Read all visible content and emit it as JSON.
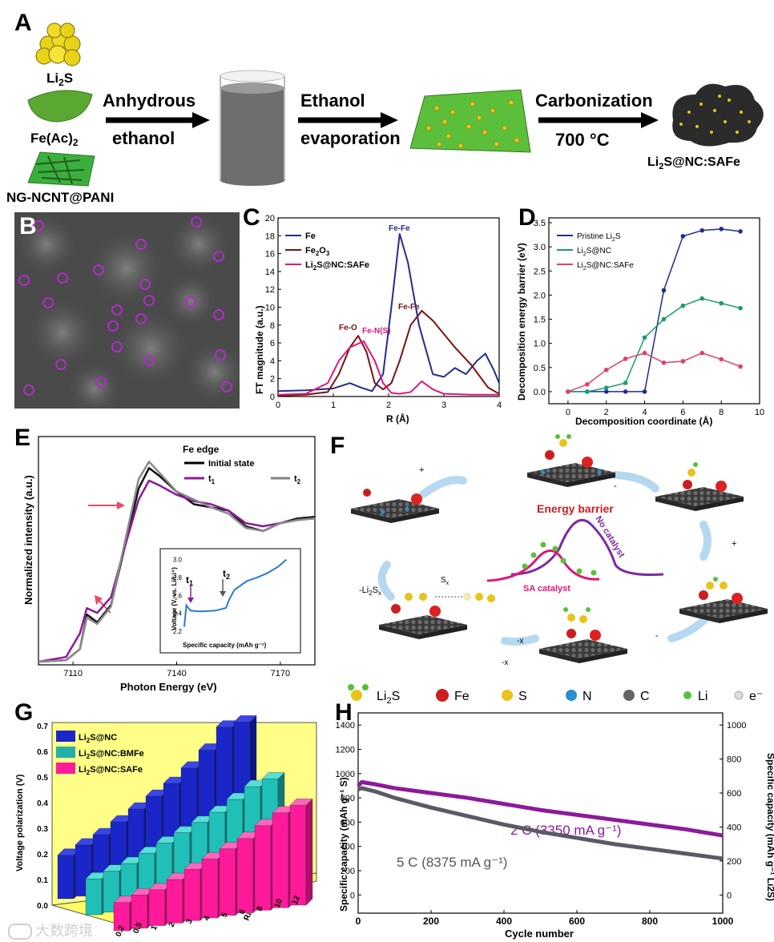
{
  "panels": {
    "a": {
      "letter": "A",
      "reagents": [
        "Li2S",
        "Fe(Ac)2",
        "NG-NCNT@PANI"
      ],
      "step1": [
        "Anhydrous",
        "ethanol"
      ],
      "step2": [
        "Ethanol",
        "evaporation"
      ],
      "step3": [
        "Carbonization",
        "700 °C"
      ],
      "product": "Li2S@NC:SAFe"
    },
    "b": {
      "letter": "B"
    },
    "c": {
      "letter": "C",
      "xlabel": "R (Å)",
      "ylabel": "FT magnitude (a.u.)",
      "legend": [
        "Fe",
        "Fe2O3",
        "Li2S@NC:SAFe"
      ],
      "annotations": [
        "Fe-Fe",
        "Fe-Fe",
        "Fe-O",
        "Fe-N(S)"
      ]
    },
    "d": {
      "letter": "D",
      "xlabel": "Decomposition coordinate (Å)",
      "ylabel": "Decomposition energy barrier (eV)",
      "legend": [
        "Pristine Li2S",
        "Li2S@NC",
        "Li2S@NC:SAFe"
      ]
    },
    "e": {
      "letter": "E",
      "xlabel": "Photon Energy (eV)",
      "ylabel": "Normalized intensity (a.u.)",
      "title": "Fe edge",
      "legend": [
        "Initial state",
        "t1",
        "t2"
      ],
      "inset_xlabel": "Specific capacity (mAh g⁻¹)",
      "inset_ylabel": "Voltage (V, vs. Li/Li⁺)",
      "inset_labels": [
        "t1",
        "t2"
      ]
    },
    "f": {
      "letter": "F",
      "title": "Energy barrier",
      "no_catalyst": "No catalyst",
      "sa_catalyst": "SA catalyst",
      "steps": [
        "+",
        "-",
        "+",
        "-",
        "-x",
        "-x",
        "-Li2Sx",
        "Sx"
      ],
      "legend": [
        "Li2S",
        "Fe",
        "S",
        "N",
        "C",
        "Li",
        "e⁻"
      ]
    },
    "g": {
      "letter": "G",
      "ylabel": "Voltage polarization (V)",
      "xlabel": "Rate (C)",
      "legend": [
        "Li2S@NC",
        "Li2S@NC:BMFe",
        "Li2S@NC:SAFe"
      ]
    },
    "h": {
      "letter": "H",
      "xlabel": "Cycle number",
      "ylabel_left": "Specific capacity (mAh g⁻¹ S)",
      "ylabel_right": "Specific capacity (mAh g⁻¹ Li2S)",
      "label_2c": "2 C (3350 mA g⁻¹)",
      "label_5c": "5 C (8375 mA g⁻¹)"
    }
  },
  "watermark": "大数跨境",
  "colors": {
    "blue": "#1f2d8f",
    "darkred": "#7a1212",
    "magenta": "#e0157a",
    "green": "#1a9c70",
    "pink": "#e0406a",
    "purple": "#8c1a9a",
    "gray": "#808080",
    "yellowbg": "#ffff88"
  },
  "chart_data": [
    {
      "id": "C",
      "type": "line",
      "xlim": [
        0,
        4
      ],
      "ylim": [
        0,
        20
      ],
      "xticks": [
        0,
        1,
        2,
        3,
        4
      ],
      "yticks": [
        0,
        2,
        4,
        6,
        8,
        10,
        12,
        14,
        16,
        18,
        20
      ],
      "series": [
        {
          "name": "Fe",
          "x": [
            0,
            0.5,
            1.0,
            1.3,
            1.5,
            1.7,
            1.9,
            2.05,
            2.2,
            2.35,
            2.55,
            2.8,
            3.0,
            3.2,
            3.4,
            3.6,
            3.75,
            3.9,
            4.0
          ],
          "y": [
            0.6,
            0.7,
            0.9,
            1.5,
            1.0,
            0.6,
            2.5,
            10,
            18.2,
            15,
            8,
            2.5,
            2.2,
            3.2,
            2.5,
            4.0,
            4.8,
            3.0,
            1.5
          ]
        },
        {
          "name": "Fe2O3",
          "x": [
            0,
            0.5,
            0.9,
            1.1,
            1.3,
            1.45,
            1.6,
            1.75,
            1.9,
            2.05,
            2.2,
            2.4,
            2.6,
            2.8,
            3.0,
            3.2,
            3.5,
            3.8,
            4.0
          ],
          "y": [
            0.1,
            0.2,
            0.5,
            2.5,
            5.5,
            6.8,
            5.0,
            1.5,
            0.8,
            1.5,
            4.0,
            8.0,
            9.6,
            8.5,
            7.0,
            5.5,
            3.5,
            1.0,
            0.3
          ]
        },
        {
          "name": "Li2S@NC:SAFe",
          "x": [
            0,
            0.5,
            0.9,
            1.1,
            1.3,
            1.55,
            1.75,
            1.9,
            2.05,
            2.2,
            2.4,
            2.6,
            2.8,
            3.0,
            3.5,
            4.0
          ],
          "y": [
            0.2,
            0.3,
            1.5,
            4.0,
            5.5,
            6.2,
            4.0,
            1.5,
            0.4,
            0.3,
            0.5,
            1.7,
            0.8,
            0.3,
            0.2,
            0.2
          ]
        }
      ]
    },
    {
      "id": "D",
      "type": "line",
      "xlim": [
        -1,
        10
      ],
      "ylim": [
        -0.25,
        3.6
      ],
      "xticks": [
        0,
        2,
        4,
        6,
        8,
        10
      ],
      "yticks": [
        0.0,
        0.5,
        1.0,
        1.5,
        2.0,
        2.5,
        3.0,
        3.5
      ],
      "series": [
        {
          "name": "Pristine Li2S",
          "x": [
            0,
            1,
            2,
            3,
            4,
            5,
            6,
            7,
            8,
            9
          ],
          "y": [
            0,
            0,
            0,
            0,
            0,
            2.1,
            3.22,
            3.34,
            3.37,
            3.32
          ]
        },
        {
          "name": "Li2S@NC",
          "x": [
            0,
            1,
            2,
            3,
            4,
            5,
            6,
            7,
            8,
            9
          ],
          "y": [
            0,
            0,
            0.08,
            0.18,
            1.12,
            1.5,
            1.78,
            1.93,
            1.83,
            1.73
          ]
        },
        {
          "name": "Li2S@NC:SAFe",
          "x": [
            0,
            1,
            2,
            3,
            4,
            5,
            6,
            7,
            8,
            9
          ],
          "y": [
            0,
            0.15,
            0.45,
            0.68,
            0.8,
            0.6,
            0.63,
            0.8,
            0.67,
            0.52
          ]
        }
      ]
    },
    {
      "id": "E",
      "type": "line",
      "xlim": [
        7100,
        7180
      ],
      "ylim": [
        0,
        1.45
      ],
      "xticks": [
        7110,
        7140,
        7170
      ],
      "series": [
        {
          "name": "Initial state",
          "x": [
            7100,
            7108,
            7112,
            7114,
            7117,
            7121,
            7125,
            7129,
            7132,
            7135,
            7140,
            7145,
            7150,
            7155,
            7160,
            7165,
            7170,
            7175,
            7180
          ],
          "y": [
            0.02,
            0.03,
            0.1,
            0.32,
            0.27,
            0.38,
            0.75,
            1.12,
            1.25,
            1.2,
            1.1,
            1.02,
            1.0,
            0.98,
            0.88,
            0.85,
            0.9,
            0.93,
            0.94
          ]
        },
        {
          "name": "t1",
          "x": [
            7100,
            7108,
            7112,
            7114,
            7117,
            7121,
            7125,
            7129,
            7132,
            7135,
            7140,
            7145,
            7150,
            7155,
            7160,
            7165,
            7170,
            7175,
            7180
          ],
          "y": [
            0.02,
            0.05,
            0.2,
            0.36,
            0.33,
            0.43,
            0.75,
            1.05,
            1.17,
            1.14,
            1.08,
            1.04,
            1.02,
            0.98,
            0.9,
            0.88,
            0.9,
            0.92,
            0.93
          ]
        },
        {
          "name": "t2",
          "x": [
            7100,
            7108,
            7112,
            7114,
            7117,
            7121,
            7125,
            7129,
            7132,
            7135,
            7140,
            7145,
            7150,
            7155,
            7160,
            7165,
            7170,
            7175,
            7180
          ],
          "y": [
            0.02,
            0.03,
            0.1,
            0.3,
            0.26,
            0.37,
            0.78,
            1.18,
            1.29,
            1.22,
            1.1,
            1.05,
            1.0,
            0.96,
            0.87,
            0.85,
            0.9,
            0.92,
            0.93
          ]
        }
      ],
      "inset": {
        "xlim": [
          0,
          10
        ],
        "ylim": [
          2.2,
          3.05
        ],
        "yticks": [
          2.2,
          2.4,
          2.6,
          2.8,
          3.0
        ],
        "x": [
          0,
          0.2,
          0.6,
          1.5,
          3.0,
          4.0,
          4.3,
          4.8,
          6,
          7,
          8,
          9,
          9.8
        ],
        "y": [
          2.25,
          2.49,
          2.43,
          2.42,
          2.43,
          2.46,
          2.55,
          2.66,
          2.76,
          2.8,
          2.85,
          2.92,
          3.0
        ]
      }
    },
    {
      "id": "G",
      "type": "bar",
      "categories": [
        "0.2",
        "0.5",
        "1",
        "2",
        "3",
        "4",
        "5",
        "6",
        "8",
        "10",
        "12"
      ],
      "ylim": [
        0,
        0.7
      ],
      "yticks": [
        0.0,
        0.1,
        0.2,
        0.3,
        0.4,
        0.5,
        0.6,
        0.7
      ],
      "series": [
        {
          "name": "Li2S@NC",
          "values": [
            0.17,
            0.2,
            0.23,
            0.27,
            0.31,
            0.35,
            0.39,
            0.44,
            0.5,
            0.58,
            0.59
          ]
        },
        {
          "name": "Li2S@NC:BMFe",
          "values": [
            0.14,
            0.16,
            0.18,
            0.21,
            0.24,
            0.27,
            0.3,
            0.33,
            0.37,
            0.41,
            0.43
          ]
        },
        {
          "name": "Li2S@NC:SAFe",
          "values": [
            0.11,
            0.13,
            0.14,
            0.17,
            0.2,
            0.23,
            0.26,
            0.29,
            0.33,
            0.37,
            0.39
          ]
        }
      ]
    },
    {
      "id": "H",
      "type": "scatter",
      "xlim": [
        0,
        1000
      ],
      "ylim": [
        -150,
        1500
      ],
      "xticks": [
        0,
        200,
        400,
        600,
        800,
        1000
      ],
      "yticks": [
        0,
        200,
        400,
        600,
        800,
        1000,
        1200,
        1400
      ],
      "right_yticks": [
        0,
        200,
        400,
        600,
        800,
        1000
      ],
      "series": [
        {
          "name": "2 C (3350 mA g-1)",
          "x": [
            0,
            10,
            50,
            100,
            200,
            300,
            400,
            500,
            600,
            700,
            800,
            900,
            1000
          ],
          "y": [
            900,
            930,
            910,
            880,
            840,
            800,
            750,
            700,
            660,
            620,
            580,
            540,
            490
          ]
        },
        {
          "name": "5 C (8375 mA g-1)",
          "x": [
            0,
            10,
            50,
            100,
            200,
            300,
            400,
            500,
            600,
            700,
            800,
            900,
            1000
          ],
          "y": [
            870,
            880,
            850,
            800,
            720,
            650,
            580,
            520,
            470,
            420,
            380,
            340,
            300
          ]
        }
      ]
    }
  ]
}
